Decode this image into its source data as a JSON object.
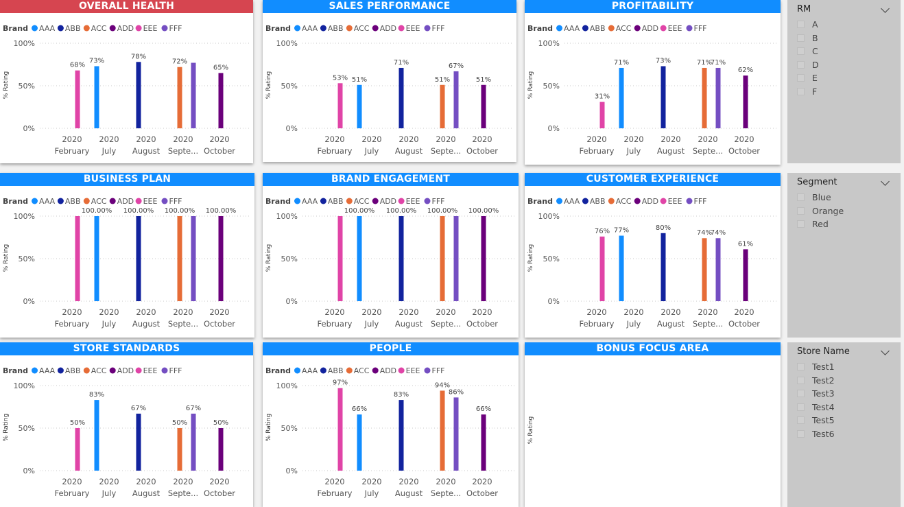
{
  "dashboard": {
    "legend_title": "Brand",
    "axis_label": "% Rating",
    "brands": [
      "AAA",
      "ABB",
      "ACC",
      "ADD",
      "EEE",
      "FFF"
    ],
    "brand_colors": {
      "AAA": "#118dff",
      "ABB": "#12239e",
      "ACC": "#e66c37",
      "ADD": "#6b007b",
      "EEE": "#e044a7",
      "FFF": "#744ec2"
    },
    "y_ticks": [
      "0%",
      "50%",
      "100%"
    ],
    "x_categories": [
      {
        "year": "2020",
        "month": "February"
      },
      {
        "year": "2020",
        "month": "July"
      },
      {
        "year": "2020",
        "month": "August"
      },
      {
        "year": "2020",
        "month": "Septe..."
      },
      {
        "year": "2020",
        "month": "October"
      }
    ]
  },
  "chart_data": [
    {
      "title": "OVERALL HEALTH",
      "title_color": "#d64550",
      "type": "bar",
      "ylabel": "% Rating",
      "ylim": [
        0,
        100
      ],
      "points": [
        {
          "category": "February",
          "brand": "EEE",
          "value": 68,
          "label": "68%"
        },
        {
          "category": "July",
          "brand": "AAA",
          "value": 73,
          "label": "73%"
        },
        {
          "category": "August",
          "brand": "ABB",
          "value": 78,
          "label": "78%"
        },
        {
          "category": "September",
          "brand": "ACC",
          "value": 72,
          "label": "72%"
        },
        {
          "category": "September",
          "brand": "FFF",
          "value": 77,
          "label": ""
        },
        {
          "category": "October",
          "brand": "ADD",
          "value": 65,
          "label": "65%"
        }
      ]
    },
    {
      "title": "SALES PERFORMANCE",
      "title_color": "#118dff",
      "type": "bar",
      "ylabel": "% Rating",
      "ylim": [
        0,
        100
      ],
      "points": [
        {
          "category": "February",
          "brand": "EEE",
          "value": 53,
          "label": "53%"
        },
        {
          "category": "July",
          "brand": "AAA",
          "value": 51,
          "label": "51%"
        },
        {
          "category": "August",
          "brand": "ABB",
          "value": 71,
          "label": "71%"
        },
        {
          "category": "September",
          "brand": "ACC",
          "value": 51,
          "label": "51%"
        },
        {
          "category": "September",
          "brand": "FFF",
          "value": 67,
          "label": "67%"
        },
        {
          "category": "October",
          "brand": "ADD",
          "value": 51,
          "label": "51%"
        }
      ]
    },
    {
      "title": "PROFITABILITY",
      "title_color": "#118dff",
      "type": "bar",
      "ylabel": "% Rating",
      "ylim": [
        0,
        100
      ],
      "points": [
        {
          "category": "February",
          "brand": "EEE",
          "value": 31,
          "label": "31%"
        },
        {
          "category": "July",
          "brand": "AAA",
          "value": 71,
          "label": "71%"
        },
        {
          "category": "August",
          "brand": "ABB",
          "value": 73,
          "label": "73%"
        },
        {
          "category": "September",
          "brand": "ACC",
          "value": 71,
          "label": "71%"
        },
        {
          "category": "September",
          "brand": "FFF",
          "value": 71,
          "label": "71%"
        },
        {
          "category": "October",
          "brand": "ADD",
          "value": 62,
          "label": "62%"
        }
      ]
    },
    {
      "title": "BUSINESS PLAN",
      "title_color": "#118dff",
      "type": "bar",
      "ylabel": "% Rating",
      "ylim": [
        0,
        100
      ],
      "points": [
        {
          "category": "February",
          "brand": "EEE",
          "value": 100,
          "label": ""
        },
        {
          "category": "July",
          "brand": "AAA",
          "value": 100,
          "label": "100.00%"
        },
        {
          "category": "August",
          "brand": "ABB",
          "value": 100,
          "label": "100.00%"
        },
        {
          "category": "September",
          "brand": "ACC",
          "value": 100,
          "label": "100.00%"
        },
        {
          "category": "September",
          "brand": "FFF",
          "value": 100,
          "label": ""
        },
        {
          "category": "October",
          "brand": "ADD",
          "value": 100,
          "label": "100.00%"
        }
      ]
    },
    {
      "title": "BRAND ENGAGEMENT",
      "title_color": "#118dff",
      "type": "bar",
      "ylabel": "% Rating",
      "ylim": [
        0,
        100
      ],
      "points": [
        {
          "category": "February",
          "brand": "EEE",
          "value": 100,
          "label": ""
        },
        {
          "category": "July",
          "brand": "AAA",
          "value": 100,
          "label": "100.00%"
        },
        {
          "category": "August",
          "brand": "ABB",
          "value": 100,
          "label": "100.00%"
        },
        {
          "category": "September",
          "brand": "ACC",
          "value": 100,
          "label": "100.00%"
        },
        {
          "category": "September",
          "brand": "FFF",
          "value": 100,
          "label": ""
        },
        {
          "category": "October",
          "brand": "ADD",
          "value": 100,
          "label": "100.00%"
        }
      ]
    },
    {
      "title": "CUSTOMER EXPERIENCE",
      "title_color": "#118dff",
      "type": "bar",
      "ylabel": "% Rating",
      "ylim": [
        0,
        100
      ],
      "points": [
        {
          "category": "February",
          "brand": "EEE",
          "value": 76,
          "label": "76%"
        },
        {
          "category": "July",
          "brand": "AAA",
          "value": 77,
          "label": "77%"
        },
        {
          "category": "August",
          "brand": "ABB",
          "value": 80,
          "label": "80%"
        },
        {
          "category": "September",
          "brand": "ACC",
          "value": 74,
          "label": "74%"
        },
        {
          "category": "September",
          "brand": "FFF",
          "value": 74,
          "label": "74%"
        },
        {
          "category": "October",
          "brand": "ADD",
          "value": 61,
          "label": "61%"
        }
      ]
    },
    {
      "title": "STORE STANDARDS",
      "title_color": "#118dff",
      "type": "bar",
      "ylabel": "% Rating",
      "ylim": [
        0,
        100
      ],
      "points": [
        {
          "category": "February",
          "brand": "EEE",
          "value": 50,
          "label": "50%"
        },
        {
          "category": "July",
          "brand": "AAA",
          "value": 83,
          "label": "83%"
        },
        {
          "category": "August",
          "brand": "ABB",
          "value": 67,
          "label": "67%"
        },
        {
          "category": "September",
          "brand": "ACC",
          "value": 50,
          "label": "50%"
        },
        {
          "category": "September",
          "brand": "FFF",
          "value": 67,
          "label": "67%"
        },
        {
          "category": "October",
          "brand": "ADD",
          "value": 50,
          "label": "50%"
        }
      ]
    },
    {
      "title": "PEOPLE",
      "title_color": "#118dff",
      "type": "bar",
      "ylabel": "% Rating",
      "ylim": [
        0,
        100
      ],
      "points": [
        {
          "category": "February",
          "brand": "EEE",
          "value": 97,
          "label": "97%"
        },
        {
          "category": "July",
          "brand": "AAA",
          "value": 66,
          "label": "66%"
        },
        {
          "category": "August",
          "brand": "ABB",
          "value": 83,
          "label": "83%"
        },
        {
          "category": "September",
          "brand": "ACC",
          "value": 94,
          "label": "94%"
        },
        {
          "category": "September",
          "brand": "FFF",
          "value": 86,
          "label": "86%"
        },
        {
          "category": "October",
          "brand": "ADD",
          "value": 66,
          "label": "66%"
        }
      ]
    },
    {
      "title": "BONUS FOCUS AREA",
      "title_color": "#118dff",
      "type": "bar",
      "ylabel": "% Rating",
      "empty": true,
      "points": []
    }
  ],
  "slicers": [
    {
      "title": "RM",
      "items": [
        "A",
        "B",
        "C",
        "D",
        "E",
        "F"
      ]
    },
    {
      "title": "Segment",
      "items": [
        "Blue",
        "Orange",
        "Red"
      ]
    },
    {
      "title": "Store Name",
      "items": [
        "Test1",
        "Test2",
        "Test3",
        "Test4",
        "Test5",
        "Test6"
      ]
    }
  ]
}
